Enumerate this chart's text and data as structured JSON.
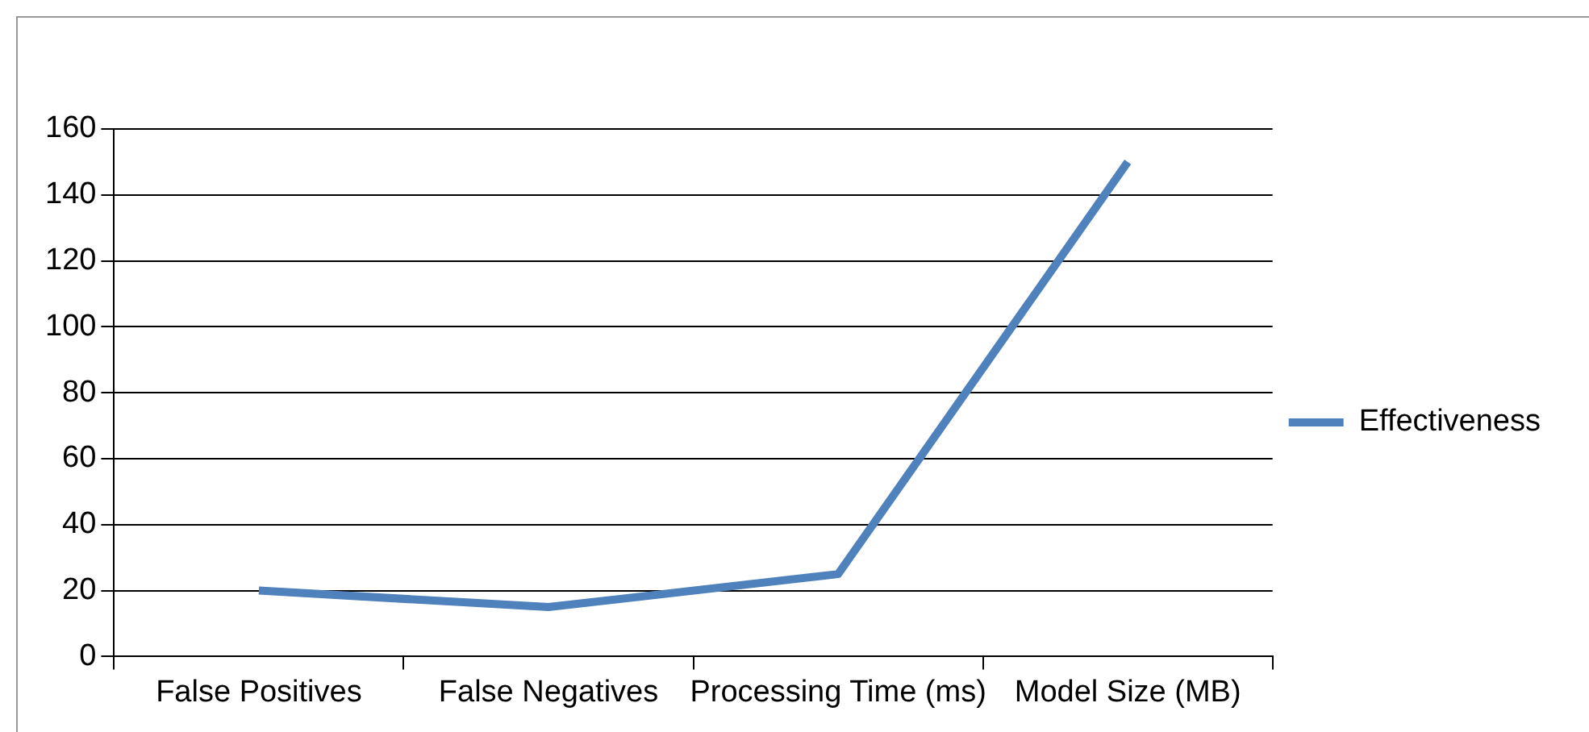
{
  "chart_data": {
    "type": "line",
    "categories": [
      "False Positives",
      "False Negatives",
      "Processing Time (ms)",
      "Model Size (MB)"
    ],
    "series": [
      {
        "name": "Effectiveness",
        "color": "#4f81bd",
        "values": [
          20,
          15,
          25,
          150
        ]
      }
    ],
    "ylim": [
      0,
      160
    ],
    "yticks": [
      0,
      20,
      40,
      60,
      80,
      100,
      120,
      140,
      160
    ],
    "grid": "y",
    "legend": "right",
    "marker": "none",
    "line_style": "solid"
  }
}
